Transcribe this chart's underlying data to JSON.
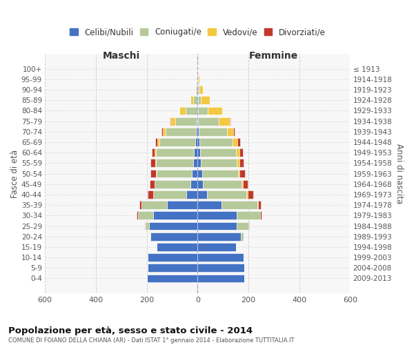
{
  "age_groups": [
    "0-4",
    "5-9",
    "10-14",
    "15-19",
    "20-24",
    "25-29",
    "30-34",
    "35-39",
    "40-44",
    "45-49",
    "50-54",
    "55-59",
    "60-64",
    "65-69",
    "70-74",
    "75-79",
    "80-84",
    "85-89",
    "90-94",
    "95-99",
    "100+"
  ],
  "birth_years": [
    "2009-2013",
    "2004-2008",
    "1999-2003",
    "1994-1998",
    "1989-1993",
    "1984-1988",
    "1979-1983",
    "1974-1978",
    "1969-1973",
    "1964-1968",
    "1959-1963",
    "1954-1958",
    "1949-1953",
    "1944-1948",
    "1939-1943",
    "1934-1938",
    "1929-1933",
    "1924-1928",
    "1919-1923",
    "1914-1918",
    "≤ 1913"
  ],
  "maschi": {
    "celibi": [
      200,
      195,
      195,
      160,
      185,
      190,
      175,
      120,
      45,
      28,
      22,
      18,
      14,
      10,
      5,
      3,
      1,
      1,
      0,
      0,
      0
    ],
    "coniugati": [
      0,
      0,
      0,
      0,
      3,
      15,
      60,
      100,
      130,
      140,
      140,
      145,
      150,
      140,
      120,
      85,
      45,
      15,
      5,
      1,
      0
    ],
    "vedovi": [
      0,
      0,
      0,
      0,
      0,
      0,
      0,
      0,
      0,
      1,
      2,
      3,
      5,
      8,
      12,
      20,
      25,
      12,
      5,
      2,
      1
    ],
    "divorziati": [
      0,
      0,
      0,
      0,
      1,
      3,
      5,
      10,
      20,
      18,
      20,
      18,
      12,
      8,
      5,
      2,
      0,
      0,
      0,
      0,
      0
    ]
  },
  "femmine": {
    "nubili": [
      185,
      185,
      180,
      150,
      170,
      155,
      155,
      95,
      38,
      22,
      18,
      14,
      10,
      7,
      5,
      3,
      1,
      1,
      1,
      0,
      0
    ],
    "coniugate": [
      0,
      0,
      0,
      2,
      10,
      45,
      90,
      140,
      155,
      150,
      140,
      140,
      140,
      130,
      110,
      80,
      40,
      12,
      5,
      1,
      0
    ],
    "vedove": [
      0,
      0,
      0,
      0,
      0,
      0,
      1,
      2,
      3,
      5,
      8,
      10,
      15,
      20,
      25,
      45,
      55,
      35,
      15,
      5,
      2
    ],
    "divorziate": [
      0,
      0,
      0,
      0,
      1,
      2,
      5,
      12,
      22,
      20,
      20,
      18,
      14,
      10,
      5,
      2,
      0,
      0,
      0,
      0,
      0
    ]
  },
  "colors": {
    "celibi_nubili": "#4472C4",
    "coniugati": "#B5C99A",
    "vedovi": "#F5C842",
    "divorziati": "#C0392B"
  },
  "title": "Popolazione per età, sesso e stato civile - 2014",
  "subtitle": "COMUNE DI FOIANO DELLA CHIANA (AR) - Dati ISTAT 1° gennaio 2014 - Elaborazione TUTTITALIA.IT",
  "xlabel_left": "Maschi",
  "xlabel_right": "Femmine",
  "ylabel_left": "Fasce di età",
  "ylabel_right": "Anni di nascita",
  "xlim": 600,
  "legend_labels": [
    "Celibi/Nubili",
    "Coniugati/e",
    "Vedovi/e",
    "Divorziati/e"
  ],
  "bg_color": "#ffffff",
  "grid_color": "#cccccc"
}
